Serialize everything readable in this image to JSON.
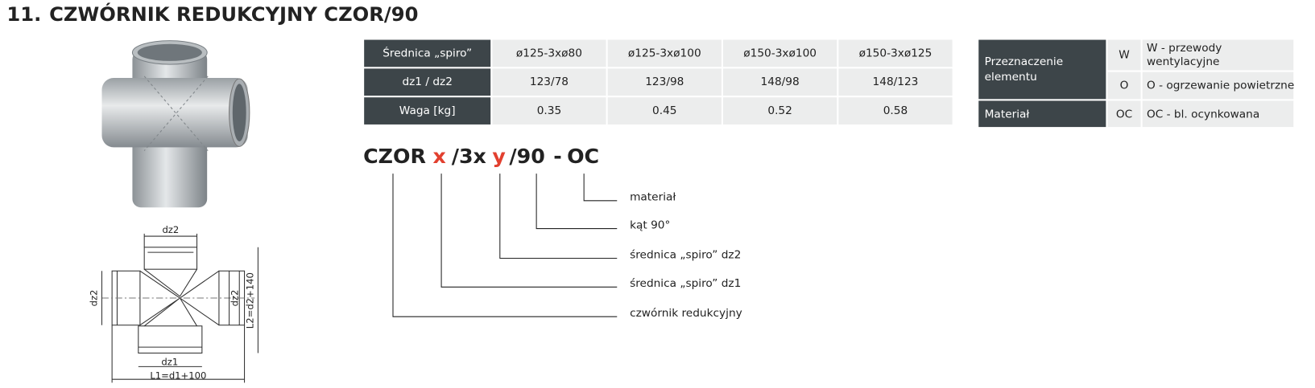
{
  "header": {
    "number": "11.",
    "title": "CZWÓRNIK REDUKCYJNY CZOR/90"
  },
  "spec_table": {
    "rows": [
      [
        "Średnica „spiro”",
        "ø125-3xø80",
        "ø125-3xø100",
        "ø150-3xø100",
        "ø150-3xø125"
      ],
      [
        "dz1 / dz2",
        "123/78",
        "123/98",
        "148/98",
        "148/123"
      ],
      [
        "Waga [kg]",
        "0.35",
        "0.45",
        "0.52",
        "0.58"
      ]
    ]
  },
  "legend_table": {
    "purpose_label": "Przeznaczenie elementu",
    "purpose_options": [
      {
        "code": "W",
        "text": "W - przewody wentylacyjne"
      },
      {
        "code": "O",
        "text": "O - ogrzewanie powietrzne"
      }
    ],
    "material_label": "Materiał",
    "material_code": "OC",
    "material_text": "OC - bl. ocynkowana"
  },
  "code": {
    "parts": [
      "CZOR",
      "x",
      "/3x",
      "y",
      "/90",
      "-",
      "OC"
    ],
    "labels": [
      "materiał",
      "kąt 90°",
      "średnica „spiro” dz2",
      "średnica „spiro” dz1",
      "czwórnik redukcyjny"
    ]
  },
  "drawing": {
    "top": "dz2",
    "left": "dz2",
    "right": "dz2",
    "height": "L2=d2+140",
    "bottom": "dz1",
    "width": "L1=d1+100"
  }
}
